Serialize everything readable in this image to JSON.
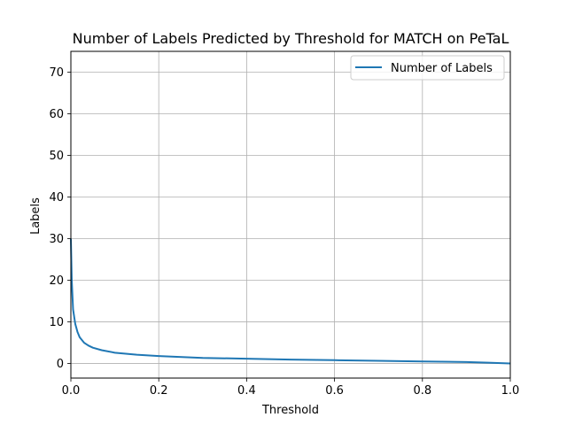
{
  "chart_data": {
    "type": "line",
    "title": "Number of Labels Predicted by Threshold for MATCH on PeTaL",
    "xlabel": "Threshold",
    "ylabel": "Labels",
    "xlim": [
      0,
      1
    ],
    "ylim": [
      -3.5,
      75
    ],
    "xticks": [
      0,
      0.2,
      0.4,
      0.6,
      0.8,
      1
    ],
    "xtick_labels": [
      "0.0",
      "0.2",
      "0.4",
      "0.6",
      "0.8",
      "1.0"
    ],
    "yticks": [
      0,
      10,
      20,
      30,
      40,
      50,
      60,
      70
    ],
    "ytick_labels": [
      "0",
      "10",
      "20",
      "30",
      "40",
      "50",
      "60",
      "70"
    ],
    "grid": true,
    "legend_position": "top-right",
    "series": [
      {
        "name": "Number of Labels",
        "color": "#1f77b4",
        "x": [
          0,
          0.002,
          0.005,
          0.01,
          0.015,
          0.02,
          0.03,
          0.04,
          0.05,
          0.07,
          0.1,
          0.15,
          0.2,
          0.3,
          0.4,
          0.5,
          0.6,
          0.7,
          0.8,
          0.9,
          0.95,
          1.0
        ],
        "y": [
          30,
          20,
          13,
          9.5,
          7.6,
          6.3,
          5.0,
          4.3,
          3.8,
          3.2,
          2.6,
          2.1,
          1.8,
          1.35,
          1.15,
          0.95,
          0.8,
          0.65,
          0.5,
          0.35,
          0.2,
          0.0
        ]
      }
    ]
  }
}
